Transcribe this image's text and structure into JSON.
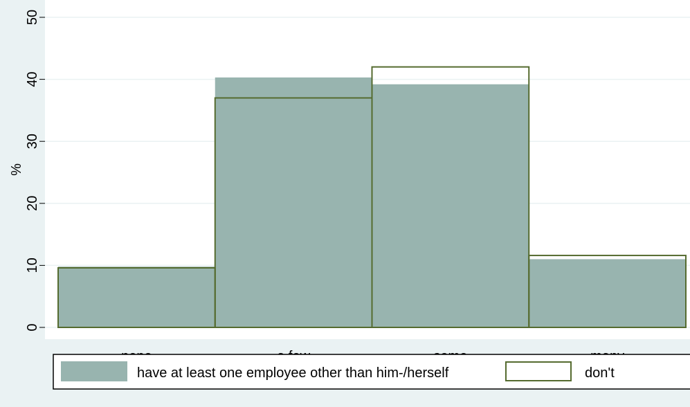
{
  "chart_data": {
    "type": "bar",
    "categories": [
      "none",
      "a few",
      "some",
      "many"
    ],
    "series": [
      {
        "name": "have at least one employee other than him-/herself",
        "values": [
          9.8,
          40.3,
          39.2,
          11.0
        ],
        "style": "filled",
        "color": "#98b4af"
      },
      {
        "name": "don't",
        "values": [
          9.6,
          37.0,
          42.0,
          11.6
        ],
        "style": "outline",
        "color": "#556b2f"
      }
    ],
    "ylabel": "%",
    "xlabel": "",
    "ylim": [
      0,
      50
    ],
    "yticks": [
      "0",
      "10",
      "20",
      "30",
      "40",
      "50"
    ],
    "grid": true,
    "legend_position": "bottom",
    "colors": {
      "background": "#eaf2f3",
      "plot_background": "#ffffff",
      "grid": "#eaf2f3"
    }
  }
}
